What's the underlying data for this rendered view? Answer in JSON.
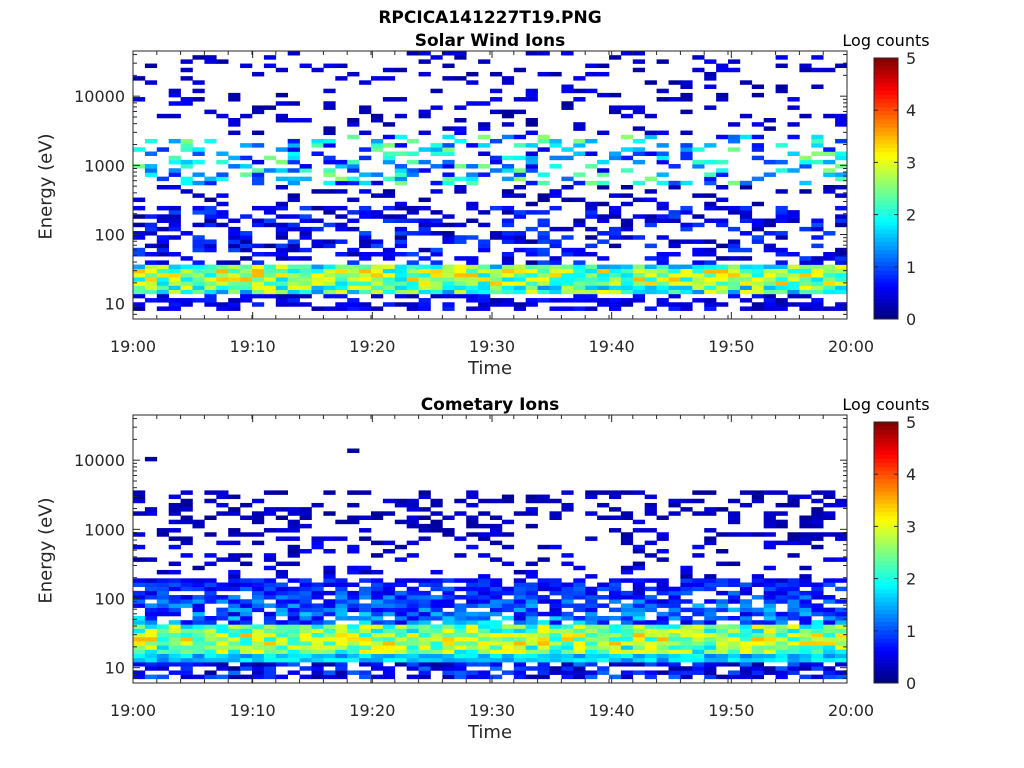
{
  "figure": {
    "title": "RPCICA141227T19.PNG"
  },
  "chart_data": [
    {
      "type": "heatmap",
      "title": "Solar Wind Ions",
      "xlabel": "Time",
      "ylabel": "Energy (eV)",
      "ylog": true,
      "ylim": [
        6,
        45000
      ],
      "yticks": [
        10,
        100,
        1000,
        10000
      ],
      "ytick_labels": [
        "10",
        "100",
        "1000",
        "10000"
      ],
      "xlim": [
        "19:00",
        "20:00"
      ],
      "xtick_labels": [
        "19:00",
        "19:10",
        "19:20",
        "19:30",
        "19:40",
        "19:50",
        "20:00"
      ],
      "colorbar": {
        "label": "Log counts",
        "range": [
          0,
          5
        ],
        "ticks": [
          0,
          1,
          2,
          3,
          4,
          5
        ],
        "colormap": "jet"
      },
      "grid": false,
      "dominant_features": "Persistent band 15-35 eV at 1.5-3.5 log counts; scattered bands near 600-2500 eV up to ~2.8; sparse low counts above 3000 eV"
    },
    {
      "type": "heatmap",
      "title": "Cometary Ions",
      "xlabel": "Time",
      "ylabel": "Energy (eV)",
      "ylog": true,
      "ylim": [
        6,
        45000
      ],
      "yticks": [
        10,
        100,
        1000,
        10000
      ],
      "ytick_labels": [
        "10",
        "100",
        "1000",
        "10000"
      ],
      "xlim": [
        "19:00",
        "20:00"
      ],
      "xtick_labels": [
        "19:00",
        "19:10",
        "19:20",
        "19:30",
        "19:40",
        "19:50",
        "20:00"
      ],
      "colorbar": {
        "label": "Log counts",
        "range": [
          0,
          5
        ],
        "ticks": [
          0,
          1,
          2,
          3,
          4,
          5
        ],
        "colormap": "jet"
      },
      "grid": false,
      "dominant_features": "Strong band 20-40 eV peaking near 3 log counts; moderate 40-200 eV; sparse low counts near 1500-3500 eV"
    }
  ]
}
